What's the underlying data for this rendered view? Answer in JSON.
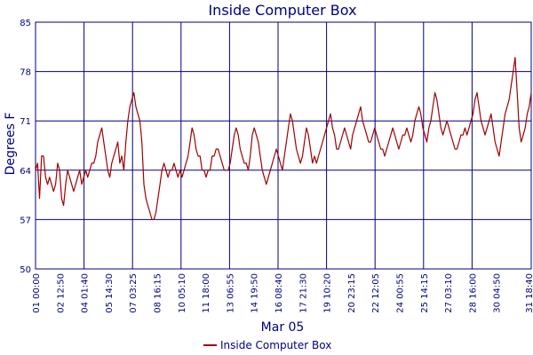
{
  "chart_data": {
    "type": "line",
    "title": "Inside Computer Box",
    "xlabel": "Mar 05",
    "ylabel": "Degrees F",
    "ylim": [
      50,
      85
    ],
    "yticks": [
      50,
      57,
      64,
      71,
      78,
      85
    ],
    "xticks": [
      "01 00:00",
      "02 12:50",
      "04 01:40",
      "05 14:30",
      "07 03:25",
      "08 16:15",
      "10 05:10",
      "11 18:00",
      "13 06:55",
      "14 19:50",
      "16 08:40",
      "17 21:30",
      "19 10:20",
      "20 23:15",
      "22 12:05",
      "24 00:55",
      "25 14:15",
      "27 03:10",
      "28 16:00",
      "30 04:50",
      "31 18:40"
    ],
    "grid": true,
    "legend_position": "bottom-center",
    "colors": {
      "text": "#000080",
      "grid": "#000080",
      "series": "#a00000"
    },
    "series": [
      {
        "name": "Inside Computer Box",
        "values": [
          64,
          65,
          60,
          66,
          66,
          63,
          62,
          63,
          62,
          61,
          62,
          65,
          64,
          60,
          59,
          62,
          64,
          63,
          62,
          61,
          62,
          63,
          64,
          62,
          63,
          64,
          63,
          64,
          65,
          65,
          66,
          68,
          69,
          70,
          68,
          66,
          64,
          63,
          65,
          66,
          67,
          68,
          65,
          66,
          64,
          68,
          71,
          73,
          74,
          75,
          73,
          72,
          71,
          68,
          62,
          60,
          59,
          58,
          57,
          57,
          58,
          60,
          62,
          64,
          65,
          64,
          63,
          64,
          64,
          65,
          64,
          63,
          64,
          63,
          64,
          65,
          66,
          68,
          70,
          69,
          67,
          66,
          66,
          64,
          64,
          63,
          64,
          64,
          66,
          66,
          67,
          67,
          66,
          65,
          64,
          64,
          64,
          65,
          67,
          69,
          70,
          69,
          67,
          66,
          65,
          65,
          64,
          66,
          69,
          70,
          69,
          68,
          66,
          64,
          63,
          62,
          63,
          64,
          65,
          66,
          67,
          66,
          65,
          64,
          66,
          68,
          70,
          72,
          71,
          69,
          67,
          66,
          65,
          66,
          68,
          70,
          69,
          67,
          65,
          66,
          65,
          66,
          67,
          68,
          69,
          70,
          71,
          72,
          70,
          69,
          67,
          67,
          68,
          69,
          70,
          69,
          68,
          67,
          69,
          70,
          71,
          72,
          73,
          71,
          70,
          69,
          68,
          68,
          69,
          70,
          69,
          68,
          67,
          67,
          66,
          67,
          68,
          69,
          70,
          69,
          68,
          67,
          68,
          69,
          69,
          70,
          69,
          68,
          69,
          71,
          72,
          73,
          72,
          70,
          69,
          68,
          70,
          71,
          73,
          75,
          74,
          72,
          70,
          69,
          70,
          71,
          70,
          69,
          68,
          67,
          67,
          68,
          69,
          69,
          70,
          69,
          70,
          71,
          72,
          74,
          75,
          73,
          71,
          70,
          69,
          70,
          71,
          72,
          70,
          68,
          67,
          66,
          68,
          70,
          72,
          73,
          74,
          76,
          78,
          80,
          75,
          70,
          68,
          69,
          70,
          72,
          73,
          75
        ]
      }
    ]
  }
}
